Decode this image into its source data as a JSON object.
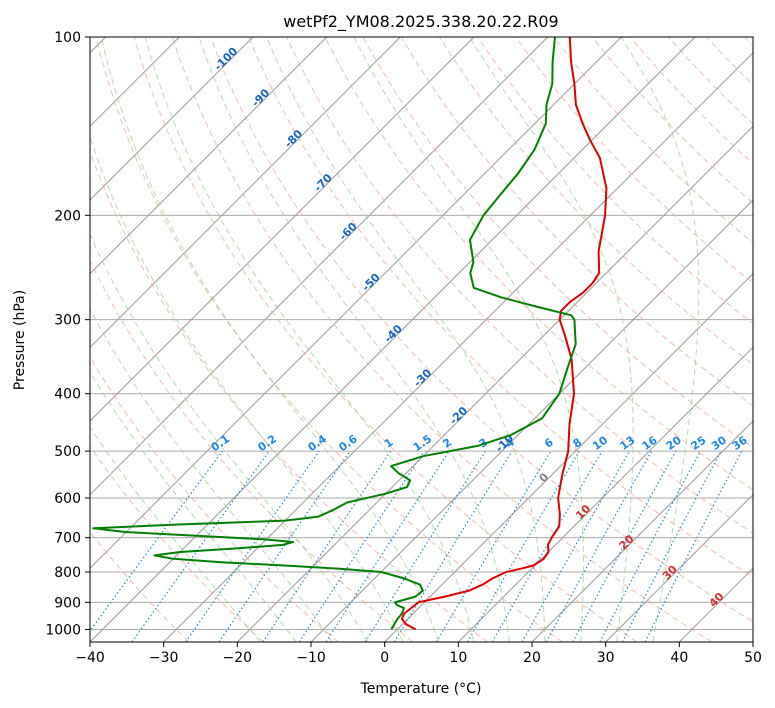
{
  "chart_data": {
    "type": "line",
    "title": "wetPf2_YM08.2025.338.20.22.R09",
    "xlabel": "Temperature (°C)",
    "ylabel": "Pressure (hPa)",
    "xlim": [
      -40,
      50
    ],
    "ylim": [
      1050,
      100
    ],
    "y_scale": "log",
    "x_ticks": [
      -40,
      -30,
      -20,
      -10,
      0,
      10,
      20,
      30,
      40,
      50
    ],
    "x_tick_labels": [
      "−40",
      "−30",
      "−20",
      "−10",
      "0",
      "10",
      "20",
      "30",
      "40",
      "50"
    ],
    "y_ticks": [
      100,
      200,
      300,
      400,
      500,
      600,
      700,
      800,
      900,
      1000
    ],
    "y_tick_labels": [
      "100",
      "200",
      "300",
      "400",
      "500",
      "600",
      "700",
      "800",
      "900",
      "1000"
    ],
    "grid": true,
    "skew": true,
    "series": [
      {
        "color": "#e00000",
        "points": [
          [
            1000,
            2.5
          ],
          [
            980,
            0.5
          ],
          [
            960,
            -0.8
          ],
          [
            940,
            -1.2
          ],
          [
            920,
            -1.0
          ],
          [
            900,
            -0.8
          ],
          [
            880,
            2.0
          ],
          [
            860,
            4.5
          ],
          [
            840,
            5.5
          ],
          [
            820,
            6.0
          ],
          [
            800,
            7.0
          ],
          [
            790,
            8.5
          ],
          [
            780,
            9.8
          ],
          [
            760,
            10.3
          ],
          [
            740,
            10.0
          ],
          [
            720,
            9.0
          ],
          [
            700,
            8.5
          ],
          [
            670,
            8.0
          ],
          [
            640,
            6.5
          ],
          [
            600,
            4.0
          ],
          [
            550,
            1.5
          ],
          [
            500,
            -1.0
          ],
          [
            450,
            -4.5
          ],
          [
            400,
            -8.0
          ],
          [
            350,
            -13.0
          ],
          [
            320,
            -17.0
          ],
          [
            300,
            -20.0
          ],
          [
            290,
            -21.0
          ],
          [
            280,
            -21.0
          ],
          [
            270,
            -20.5
          ],
          [
            260,
            -20.5
          ],
          [
            250,
            -21.0
          ],
          [
            230,
            -24.0
          ],
          [
            200,
            -28.0
          ],
          [
            180,
            -31.5
          ],
          [
            160,
            -36.5
          ],
          [
            150,
            -40.0
          ],
          [
            140,
            -43.5
          ],
          [
            130,
            -47.0
          ],
          [
            120,
            -50.0
          ],
          [
            110,
            -53.5
          ],
          [
            100,
            -57.0
          ]
        ]
      },
      {
        "color": "#008000",
        "points": [
          [
            1000,
            -0.8
          ],
          [
            980,
            -1.1
          ],
          [
            960,
            -1.4
          ],
          [
            940,
            -1.5
          ],
          [
            920,
            -2.0
          ],
          [
            910,
            -3.3
          ],
          [
            900,
            -4.0
          ],
          [
            890,
            -3.0
          ],
          [
            880,
            -2.0
          ],
          [
            860,
            -1.8
          ],
          [
            840,
            -3.0
          ],
          [
            820,
            -6.0
          ],
          [
            800,
            -10.0
          ],
          [
            790,
            -16.0
          ],
          [
            780,
            -24.0
          ],
          [
            770,
            -33.0
          ],
          [
            760,
            -40.0
          ],
          [
            750,
            -43.0
          ],
          [
            740,
            -40.0
          ],
          [
            730,
            -33.0
          ],
          [
            720,
            -27.0
          ],
          [
            712,
            -26.0
          ],
          [
            705,
            -30.0
          ],
          [
            695,
            -40.0
          ],
          [
            685,
            -50.0
          ],
          [
            675,
            -55.0
          ],
          [
            665,
            -44.0
          ],
          [
            655,
            -30.0
          ],
          [
            645,
            -26.0
          ],
          [
            630,
            -25.0
          ],
          [
            610,
            -24.0
          ],
          [
            590,
            -20.0
          ],
          [
            575,
            -18.0
          ],
          [
            560,
            -18.5
          ],
          [
            545,
            -21.0
          ],
          [
            530,
            -23.0
          ],
          [
            510,
            -20.0
          ],
          [
            490,
            -14.0
          ],
          [
            470,
            -11.0
          ],
          [
            440,
            -9.0
          ],
          [
            400,
            -10.0
          ],
          [
            360,
            -12.5
          ],
          [
            330,
            -14.5
          ],
          [
            300,
            -18.0
          ],
          [
            295,
            -19.0
          ],
          [
            285,
            -25.0
          ],
          [
            275,
            -31.0
          ],
          [
            265,
            -36.0
          ],
          [
            250,
            -38.5
          ],
          [
            240,
            -39.5
          ],
          [
            220,
            -43.0
          ],
          [
            200,
            -44.5
          ],
          [
            185,
            -45.0
          ],
          [
            170,
            -45.5
          ],
          [
            155,
            -46.5
          ],
          [
            140,
            -48.5
          ],
          [
            130,
            -51.0
          ],
          [
            120,
            -53.0
          ],
          [
            110,
            -56.0
          ],
          [
            100,
            -59.0
          ]
        ]
      }
    ],
    "dry_adiabats_theta_c": [
      -30,
      -20,
      -10,
      0,
      10,
      20,
      30,
      40,
      50,
      60,
      70,
      80,
      90,
      100,
      110,
      120,
      130,
      140,
      150,
      160,
      170,
      180,
      190,
      200
    ],
    "moist_adiabats_tw_c": [
      -20,
      -15,
      -10,
      -5,
      0,
      5,
      10,
      15,
      20,
      25,
      30,
      35
    ],
    "mixing_ratio_lines_gkg": [
      {
        "label": "0.1",
        "value": 0.1
      },
      {
        "label": "0.2",
        "value": 0.2
      },
      {
        "label": "0.4",
        "value": 0.4
      },
      {
        "label": "0.6",
        "value": 0.6
      },
      {
        "label": "1",
        "value": 1
      },
      {
        "label": "1.5",
        "value": 1.5
      },
      {
        "label": "2",
        "value": 2
      },
      {
        "label": "3",
        "value": 3
      },
      {
        "label": "4",
        "value": 4
      },
      {
        "label": "6",
        "value": 6
      },
      {
        "label": "8",
        "value": 8
      },
      {
        "label": "10",
        "value": 10
      },
      {
        "label": "13",
        "value": 13
      },
      {
        "label": "16",
        "value": 16
      },
      {
        "label": "20",
        "value": 20
      },
      {
        "label": "25",
        "value": 25
      },
      {
        "label": "30",
        "value": 30
      },
      {
        "label": "36",
        "value": 36
      }
    ],
    "isotherm_labels_cold": [
      "-100",
      "-90",
      "-80",
      "-70",
      "-60",
      "-50",
      "-40",
      "-30",
      "-20",
      "-10"
    ],
    "isotherm_labels_warm": [
      "0",
      "10",
      "20",
      "30",
      "40"
    ],
    "colors": {
      "temperature": "#e00000",
      "dewpoint": "#008000",
      "isotherm": "#999999",
      "dry_adiabat": "#f4a48a",
      "moist_adiabat": "#8ccf8c",
      "mixing_ratio": "#1e88e5",
      "cold_label": "#1565c0",
      "warm_label": "#d32f2f",
      "zero_label": "#808080",
      "isobar": "#aaaaaa"
    }
  }
}
